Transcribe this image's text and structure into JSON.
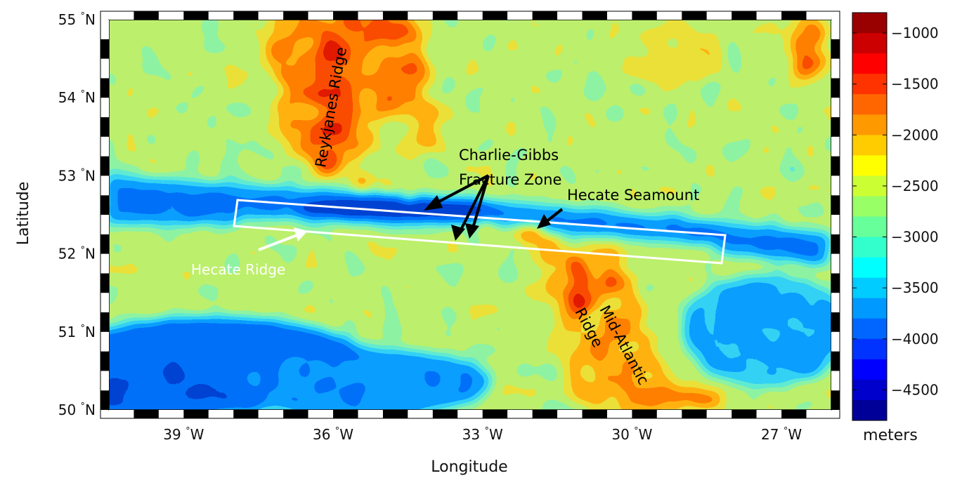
{
  "chart_data": {
    "type": "heatmap",
    "title": "",
    "xlabel": "Longitude",
    "ylabel": "Latitude",
    "xlim": [
      -40.5,
      -26.0
    ],
    "ylim": [
      50,
      55
    ],
    "x_tick_labels": [
      "39 °W",
      "36 °W",
      "33 °W",
      "30 °W",
      "27 °W"
    ],
    "x_ticks": [
      -39,
      -36,
      -33,
      -30,
      -27
    ],
    "y_tick_labels": [
      "50 °N",
      "51 °N",
      "52 °N",
      "53 °N",
      "54 °N",
      "55 °N"
    ],
    "y_ticks": [
      50,
      51,
      52,
      53,
      54,
      55
    ],
    "colorbar": {
      "label": "meters",
      "ticks": [
        -1000,
        -1500,
        -2000,
        -2500,
        -3000,
        -3500,
        -4000,
        -4500
      ],
      "tick_labels": [
        "−1000",
        "−1500",
        "−2000",
        "−2500",
        "−3000",
        "−3500",
        "−4000",
        "−4500"
      ],
      "range": [
        -4800,
        -800
      ],
      "colormap": "jet"
    },
    "features": [
      {
        "name": "Reykjanes Ridge",
        "lon": [
          -35.5,
          -35.0
        ],
        "lat": [
          53.0,
          55.0
        ],
        "depth": -1400
      },
      {
        "name": "Mid-Atlantic Ridge",
        "lon": [
          -31.0,
          -29.0
        ],
        "lat": [
          50.0,
          52.2
        ],
        "depth": -1800
      },
      {
        "name": "Hecate Ridge",
        "lon": [
          -38,
          -27.5
        ],
        "lat": [
          52.3,
          52.5
        ],
        "depth": -3300
      },
      {
        "name": "Hecate Seamount",
        "lon": -31.2,
        "lat": 52.35,
        "depth": -1200
      },
      {
        "name": "Charlie-Gibbs Fracture Zone",
        "lon": [
          -40.5,
          -26.0
        ],
        "lat": [
          52.5,
          53.0
        ],
        "depth": -4500
      }
    ],
    "box": {
      "lon": [
        -37.7,
        -27.2
      ],
      "lat": [
        52.3,
        52.75
      ],
      "color": "#ffffff"
    },
    "annotations": [
      {
        "text": "Reykjanes Ridge",
        "color": "#000000"
      },
      {
        "text": "Charlie-Gibbs",
        "color": "#000000"
      },
      {
        "text": "Fracture Zone",
        "color": "#000000"
      },
      {
        "text": "Hecate Seamount",
        "color": "#000000"
      },
      {
        "text": "Hecate Ridge",
        "color": "#ffffff"
      },
      {
        "text": "Mid-Atlantic",
        "color": "#000000"
      },
      {
        "text": "Ridge",
        "color": "#000000"
      }
    ]
  }
}
